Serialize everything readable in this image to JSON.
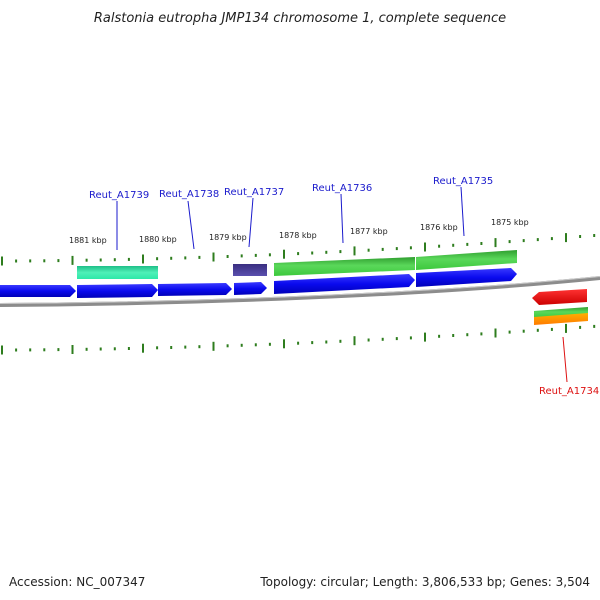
{
  "title": "Ralstonia eutropha JMP134 chromosome 1, complete sequence",
  "footer": {
    "accession": "Accession: NC_007347",
    "summary": "Topology: circular; Length: 3,806,533 bp; Genes: 3,504"
  },
  "scale_labels": [
    "1881 kbp",
    "1880 kbp",
    "1879 kbp",
    "1878 kbp",
    "1877 kbp",
    "1876 kbp",
    "1875 kbp"
  ],
  "gene_labels": [
    {
      "name": "Reut_A1739",
      "color": "#1a1acc"
    },
    {
      "name": "Reut_A1738",
      "color": "#1a1acc"
    },
    {
      "name": "Reut_A1737",
      "color": "#1a1acc"
    },
    {
      "name": "Reut_A1736",
      "color": "#1a1acc"
    },
    {
      "name": "Reut_A1735",
      "color": "#1a1acc"
    },
    {
      "name": "Reut_A1734",
      "color": "#dd1111"
    }
  ],
  "colors": {
    "backbone": "#8c8c8c",
    "tick": "#2e7d1e",
    "gene_blue": "#0a0aee",
    "cds_green": "#3cc83c",
    "cds_teal": "#2ee8a8",
    "cds_purple": "#4a3f9a",
    "gene_red": "#ee1111",
    "cds_orange": "#ff8c00"
  }
}
